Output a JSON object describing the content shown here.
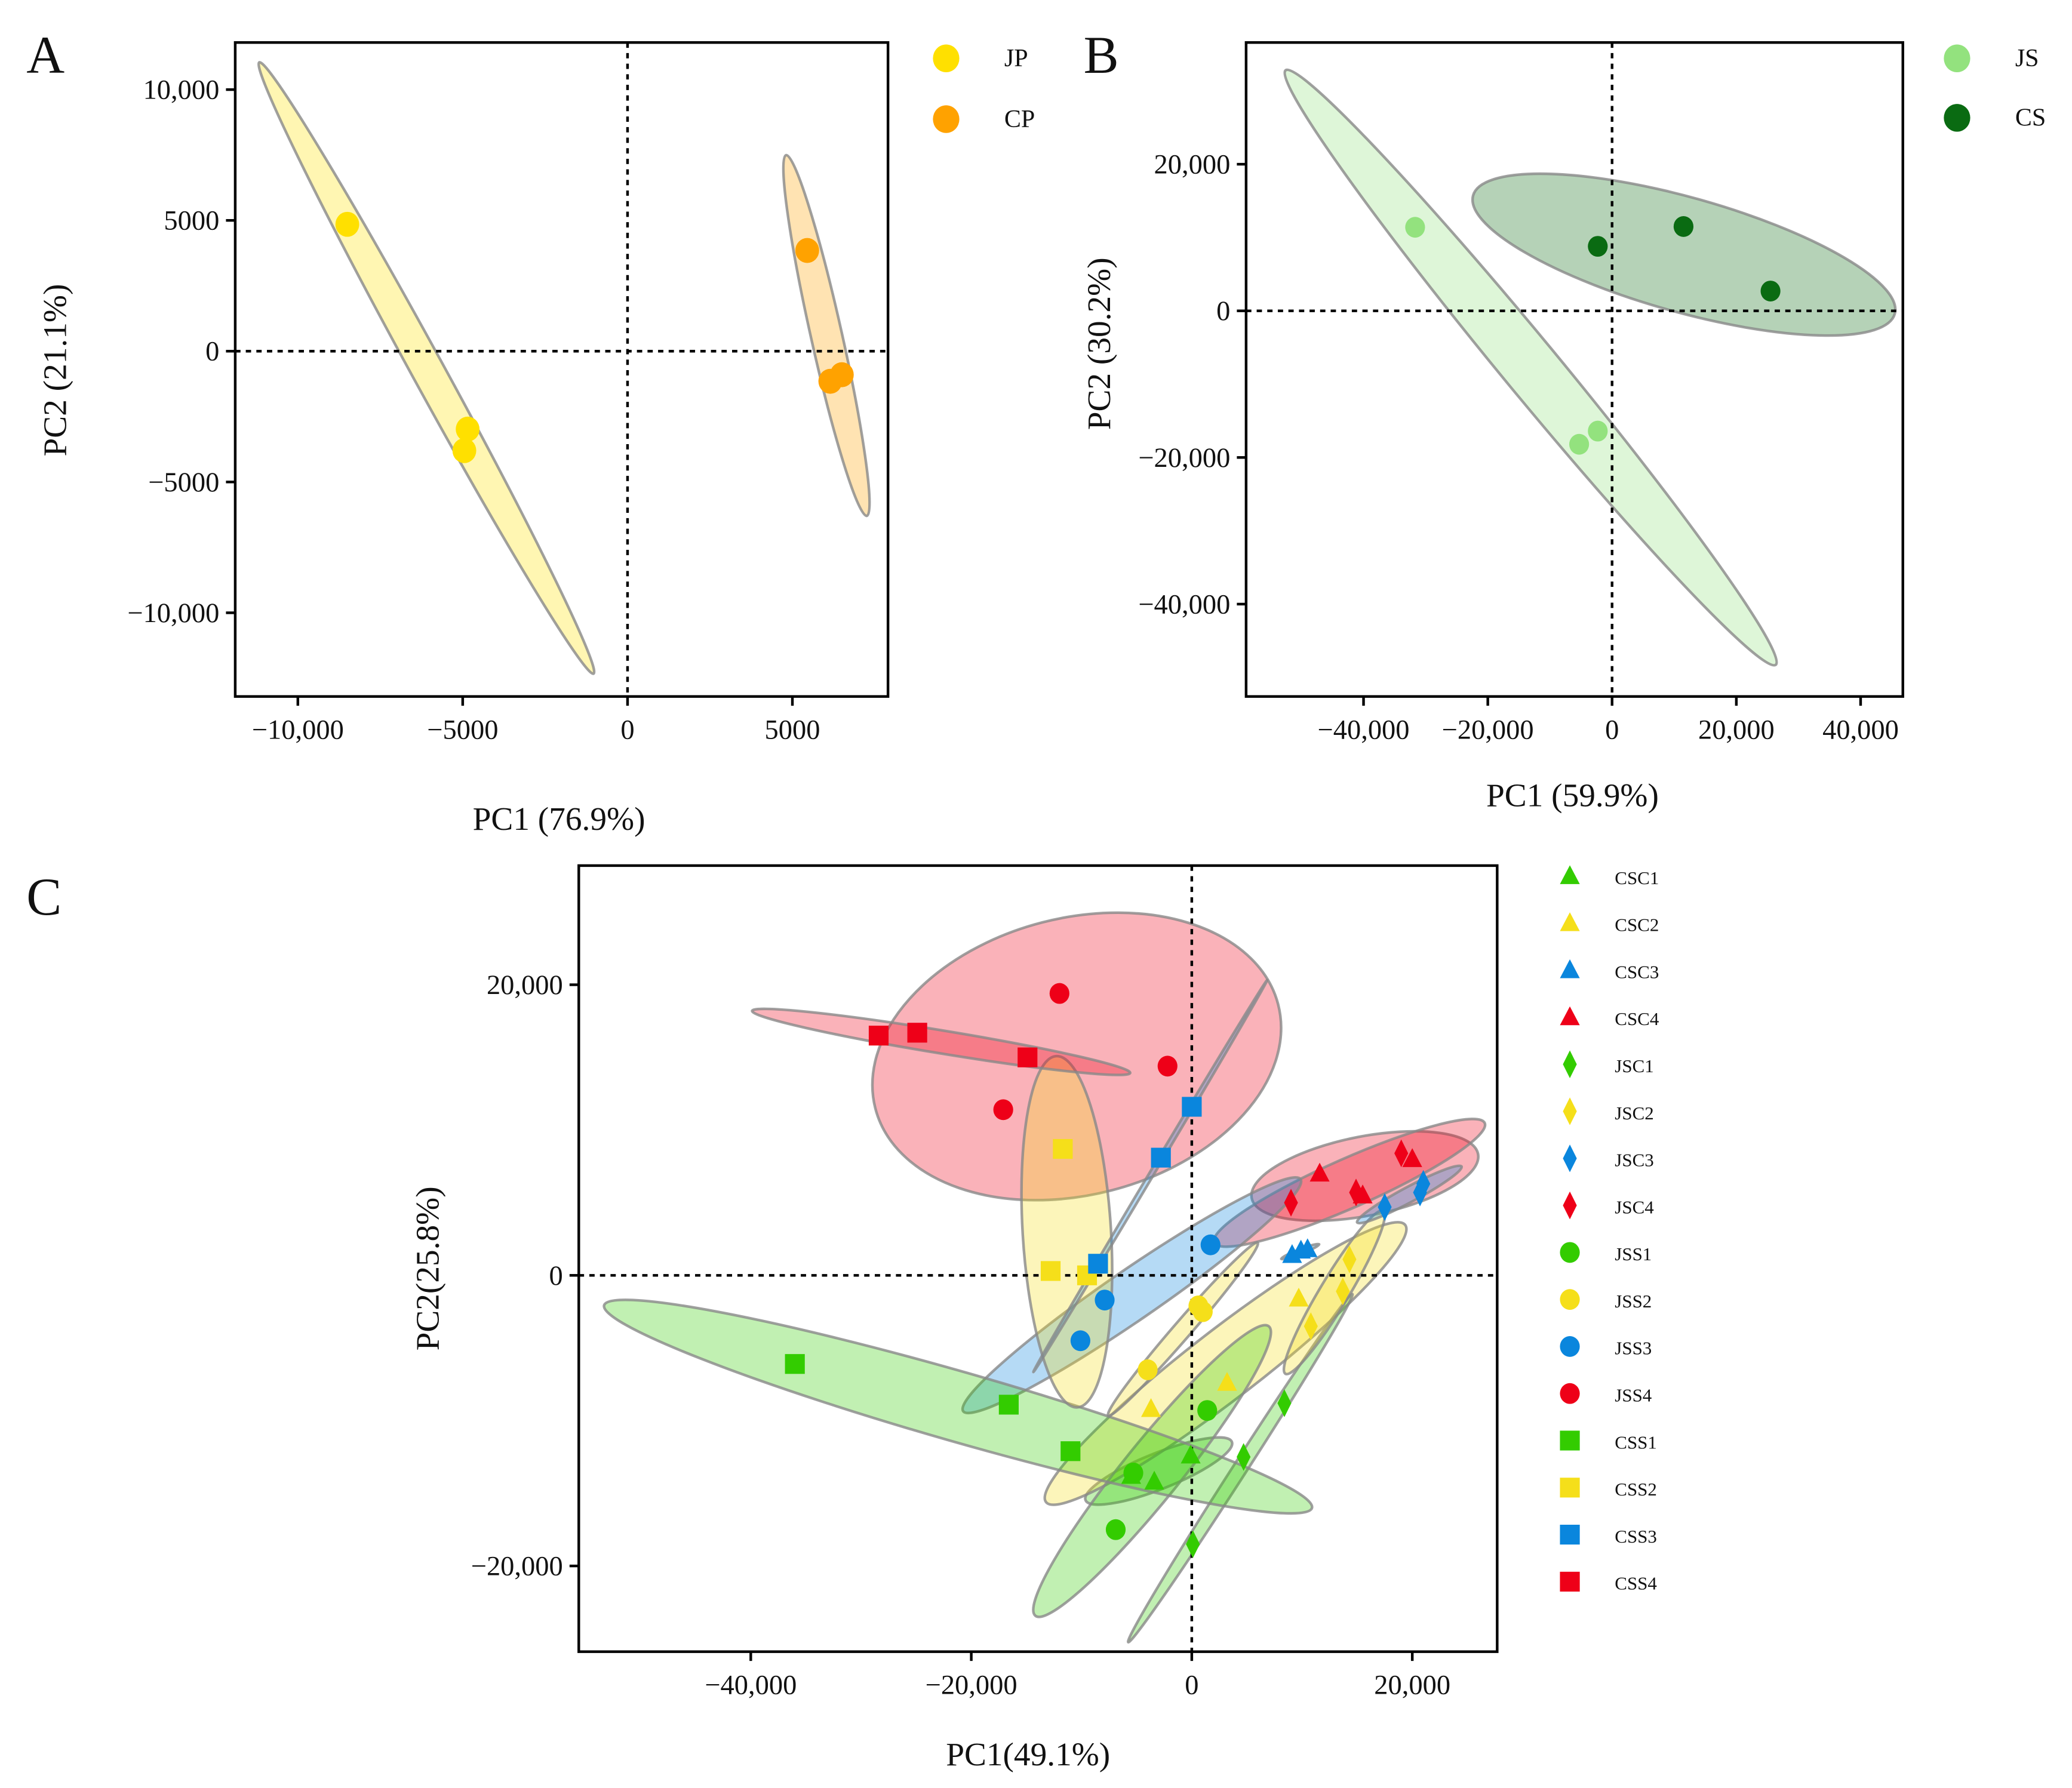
{
  "chart_data": [
    {
      "type": "scatter",
      "panel": "A",
      "xlabel": "PC1 (76.9%)",
      "ylabel": "PC2 (21.1%)",
      "xlim": [
        -11900,
        7900
      ],
      "ylim": [
        -13200,
        11800
      ],
      "xticks": [
        {
          "v": -10000,
          "label": "−10,000"
        },
        {
          "v": -5000,
          "label": "−5000"
        },
        {
          "v": 0,
          "label": "0"
        },
        {
          "v": 5000,
          "label": "5000"
        }
      ],
      "yticks": [
        {
          "v": 10000,
          "label": "10,000"
        },
        {
          "v": 5000,
          "label": "5000"
        },
        {
          "v": 0,
          "label": "0"
        },
        {
          "v": -5000,
          "label": "−5000"
        },
        {
          "v": -10000,
          "label": "−10,000"
        }
      ],
      "legend_position": "outside-right",
      "series": [
        {
          "name": "JP",
          "color": "#FFE000",
          "shape": "circle",
          "points": [
            [
              -8500,
              4850
            ],
            [
              -4850,
              -2980
            ],
            [
              -4950,
              -3800
            ]
          ]
        },
        {
          "name": "CP",
          "color": "#FFA200",
          "shape": "circle",
          "points": [
            [
              5450,
              3850
            ],
            [
              6150,
              -1150
            ],
            [
              6500,
              -900
            ]
          ]
        }
      ]
    },
    {
      "type": "scatter",
      "panel": "B",
      "xlabel": "PC1 (59.9%)",
      "ylabel": "PC2 (30.2%)",
      "xlim": [
        -58900,
        46800
      ],
      "ylim": [
        -52600,
        36600
      ],
      "xticks": [
        {
          "v": -40000,
          "label": "−40,000"
        },
        {
          "v": -20000,
          "label": "−20,000"
        },
        {
          "v": 0,
          "label": "0"
        },
        {
          "v": 20000,
          "label": "20,000"
        },
        {
          "v": 40000,
          "label": "40,000"
        }
      ],
      "yticks": [
        {
          "v": 20000,
          "label": "20,000"
        },
        {
          "v": 0,
          "label": "0"
        },
        {
          "v": -20000,
          "label": "−20,000"
        },
        {
          "v": -40000,
          "label": "−40,000"
        }
      ],
      "legend_position": "outside-right",
      "series": [
        {
          "name": "JS",
          "color": "#93E27E",
          "shape": "circle",
          "points": [
            [
              -31700,
              11400
            ],
            [
              -5300,
              -18200
            ],
            [
              -2300,
              -16400
            ]
          ]
        },
        {
          "name": "CS",
          "color": "#0A6B12",
          "shape": "circle",
          "points": [
            [
              -2300,
              8800
            ],
            [
              11500,
              11500
            ],
            [
              25500,
              2700
            ]
          ]
        }
      ]
    },
    {
      "type": "scatter",
      "panel": "C",
      "xlabel": "PC1(49.1%)",
      "ylabel": "PC2(25.8%)",
      "xlim": [
        -55600,
        27700
      ],
      "ylim": [
        -25900,
        28200
      ],
      "xticks": [
        {
          "v": -40000,
          "label": "−40,000"
        },
        {
          "v": -20000,
          "label": "−20,000"
        },
        {
          "v": 0,
          "label": "0"
        },
        {
          "v": 20000,
          "label": "20,000"
        }
      ],
      "yticks": [
        {
          "v": 20000,
          "label": "20,000"
        },
        {
          "v": 0,
          "label": "0"
        },
        {
          "v": -20000,
          "label": "−20,000"
        }
      ],
      "legend_position": "outside-right",
      "series": [
        {
          "name": "CSC1",
          "color": "#33CC00",
          "shape": "triangle",
          "points": [
            [
              -100,
              -12400
            ],
            [
              -3400,
              -14200
            ],
            [
              -5500,
              -13800
            ]
          ]
        },
        {
          "name": "CSC2",
          "color": "#F5DF1A",
          "shape": "triangle",
          "points": [
            [
              9700,
              -1600
            ],
            [
              3200,
              -7400
            ],
            [
              -3700,
              -9200
            ]
          ]
        },
        {
          "name": "CSC3",
          "color": "#0A86DD",
          "shape": "triangle",
          "points": [
            [
              9100,
              1400
            ],
            [
              9900,
              1700
            ],
            [
              10500,
              1800
            ]
          ]
        },
        {
          "name": "CSC4",
          "color": "#EE0018",
          "shape": "triangle",
          "points": [
            [
              11600,
              7000
            ],
            [
              15500,
              5500
            ],
            [
              20000,
              8000
            ]
          ]
        },
        {
          "name": "JSC1",
          "color": "#33CC00",
          "shape": "diamond",
          "points": [
            [
              8400,
              -8800
            ],
            [
              4700,
              -12500
            ],
            [
              100,
              -18500
            ]
          ]
        },
        {
          "name": "JSC2",
          "color": "#F5DF1A",
          "shape": "diamond",
          "points": [
            [
              14300,
              1100
            ],
            [
              13700,
              -1100
            ],
            [
              10800,
              -3500
            ]
          ]
        },
        {
          "name": "JSC3",
          "color": "#0A86DD",
          "shape": "diamond",
          "points": [
            [
              17500,
              4700
            ],
            [
              20700,
              5700
            ],
            [
              21000,
              6300
            ]
          ]
        },
        {
          "name": "JSC4",
          "color": "#EE0018",
          "shape": "diamond",
          "points": [
            [
              9000,
              5000
            ],
            [
              14900,
              5700
            ],
            [
              19000,
              8400
            ]
          ]
        },
        {
          "name": "JSS1",
          "color": "#33CC00",
          "shape": "circle",
          "points": [
            [
              1400,
              -9300
            ],
            [
              -5300,
              -13600
            ],
            [
              -6900,
              -17500
            ]
          ]
        },
        {
          "name": "JSS2",
          "color": "#F5DF1A",
          "shape": "circle",
          "points": [
            [
              600,
              -2100
            ],
            [
              1000,
              -2500
            ],
            [
              -4000,
              -6500
            ]
          ]
        },
        {
          "name": "JSS3",
          "color": "#0A86DD",
          "shape": "circle",
          "points": [
            [
              1700,
              2100
            ],
            [
              -7900,
              -1700
            ],
            [
              -10100,
              -4500
            ]
          ]
        },
        {
          "name": "JSS4",
          "color": "#EE0018",
          "shape": "circle",
          "points": [
            [
              -12000,
              19400
            ],
            [
              -2200,
              14400
            ],
            [
              -17100,
              11400
            ]
          ]
        },
        {
          "name": "CSS1",
          "color": "#33CC00",
          "shape": "square",
          "points": [
            [
              -36000,
              -6100
            ],
            [
              -16600,
              -8900
            ],
            [
              -11000,
              -12100
            ]
          ]
        },
        {
          "name": "CSS2",
          "color": "#F5DF1A",
          "shape": "square",
          "points": [
            [
              -11700,
              8700
            ],
            [
              -12800,
              300
            ],
            [
              -9500,
              0
            ]
          ]
        },
        {
          "name": "CSS3",
          "color": "#0A86DD",
          "shape": "square",
          "points": [
            [
              0,
              11600
            ],
            [
              -2800,
              8100
            ],
            [
              -8500,
              800
            ]
          ]
        },
        {
          "name": "CSS4",
          "color": "#EE0018",
          "shape": "square",
          "points": [
            [
              -28400,
              16500
            ],
            [
              -24900,
              16700
            ],
            [
              -14900,
              15000
            ]
          ]
        }
      ]
    }
  ]
}
